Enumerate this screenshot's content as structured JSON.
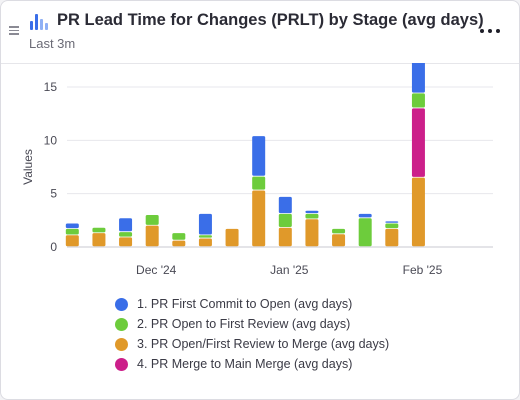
{
  "header": {
    "title": "PR Lead Time for Changes (PRLT) by Stage (avg days)",
    "subtitle": "Last 3m",
    "title_icon": "bar-chart-icon",
    "menu_icon": "more-horizontal-icon",
    "drag_icon": "drag-handle-icon"
  },
  "chart_data": {
    "type": "bar",
    "stacked": true,
    "ylabel": "Values",
    "xlabel": "",
    "ylim": [
      0,
      15
    ],
    "yticks": [
      0,
      5,
      10,
      15
    ],
    "grid": true,
    "legend_position": "bottom",
    "x_tick_labels": [
      "Dec '24",
      "Jan '25",
      "Feb '25"
    ],
    "categories": [
      "1",
      "2",
      "3",
      "4",
      "5",
      "6",
      "7",
      "8",
      "9",
      "10",
      "11",
      "12",
      "13",
      "14",
      "15",
      "16"
    ],
    "series": [
      {
        "name": "3. PR Open/First Review to Merge (avg days)",
        "color": "#e0992a",
        "values": [
          1.1,
          1.3,
          0.9,
          2.0,
          0.6,
          0.8,
          1.7,
          5.3,
          1.8,
          2.6,
          1.2,
          0,
          1.7,
          6.5,
          0,
          0
        ]
      },
      {
        "name": "4. PR Merge to Main Merge (avg days)",
        "color": "#cc1f8a",
        "values": [
          0,
          0,
          0,
          0,
          0,
          0,
          0,
          0,
          0,
          0,
          0,
          0,
          0,
          6.5,
          0,
          0
        ]
      },
      {
        "name": "2. PR Open to First Review (avg days)",
        "color": "#6dcc3c",
        "values": [
          0.6,
          0.5,
          0.5,
          1.0,
          0.7,
          0.3,
          0,
          1.3,
          1.3,
          0.5,
          0.5,
          2.7,
          0.5,
          1.4,
          0,
          0
        ]
      },
      {
        "name": "1. PR First Commit to Open (avg days)",
        "color": "#3a6ee8",
        "values": [
          0.5,
          0,
          1.3,
          0,
          0,
          2.0,
          0,
          3.8,
          1.6,
          0.3,
          0,
          0.4,
          0.2,
          3.0,
          0,
          0
        ]
      }
    ],
    "legend": [
      {
        "label": "1. PR First Commit to Open (avg days)",
        "color": "#3a6ee8"
      },
      {
        "label": "2. PR Open to First Review (avg days)",
        "color": "#6dcc3c"
      },
      {
        "label": "3. PR Open/First Review to Merge (avg days)",
        "color": "#e0992a"
      },
      {
        "label": "4. PR Merge to Main Merge (avg days)",
        "color": "#cc1f8a"
      }
    ]
  }
}
